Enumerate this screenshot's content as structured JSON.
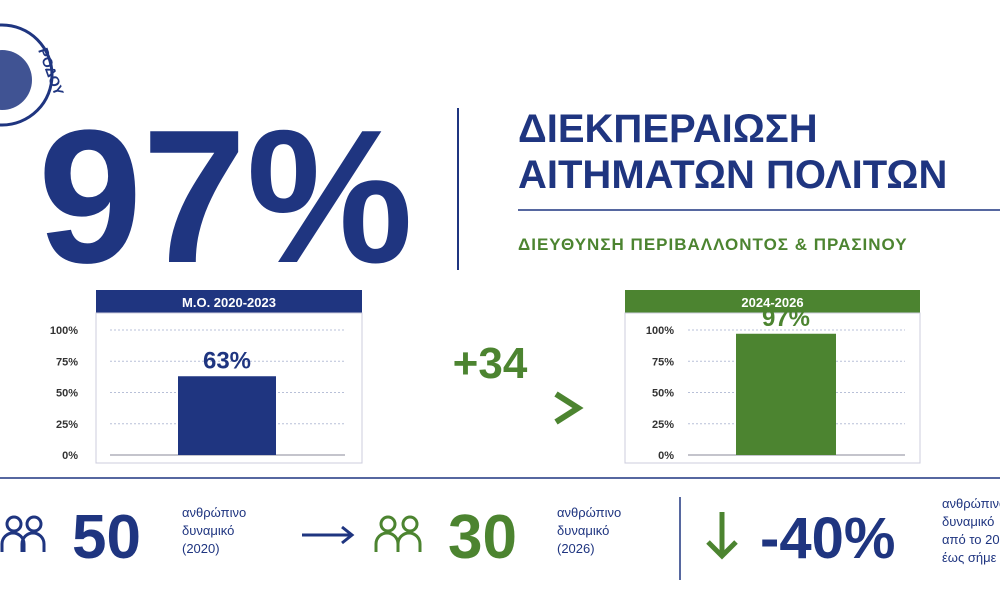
{
  "logo_text": "ΡΟΔΟΥ",
  "headline": "97%",
  "title": [
    "ΔΙΕΚΠΕΡΑΙΩΣΗ",
    "ΑΙΤΗΜΑΤΩΝ ΠΟΛΙΤΩΝ"
  ],
  "subtitle": "ΔΙΕΥΘΥΝΣΗ ΠΕΡΙΒΑΛΛΟΝΤΟΣ & ΠΡΑΣΙΝΟΥ",
  "change": "+34",
  "chart_data": [
    {
      "type": "bar",
      "title": "Μ.Ο. 2020-2023",
      "values": [
        63
      ],
      "value_labels": [
        "63%"
      ],
      "color": "#1f3580",
      "ylim": [
        0,
        100
      ],
      "yticks": [
        {
          "value": 0,
          "label": "0%"
        },
        {
          "value": 25,
          "label": "25%"
        },
        {
          "value": 50,
          "label": "50%"
        },
        {
          "value": 75,
          "label": "75%"
        },
        {
          "value": 100,
          "label": "100%"
        }
      ],
      "grid": true
    },
    {
      "type": "bar",
      "title": "2024-2026",
      "values": [
        97
      ],
      "value_labels": [
        "97%"
      ],
      "color": "#4c8430",
      "ylim": [
        0,
        100
      ],
      "yticks": [
        {
          "value": 0,
          "label": "0%"
        },
        {
          "value": 25,
          "label": "25%"
        },
        {
          "value": 50,
          "label": "50%"
        },
        {
          "value": 75,
          "label": "75%"
        },
        {
          "value": 100,
          "label": "100%"
        }
      ],
      "grid": true
    }
  ],
  "stats": [
    {
      "number": "50",
      "text": [
        "ανθρώπινο",
        "δυναμικό",
        "(2020)"
      ]
    },
    {
      "number": "30",
      "text": [
        "ανθρώπινο",
        "δυναμικό",
        "(2026)"
      ]
    },
    {
      "number": "-40%",
      "text": [
        "ανθρώπινο",
        "δυναμικό",
        "από το 20",
        "έως σήμε"
      ]
    }
  ]
}
